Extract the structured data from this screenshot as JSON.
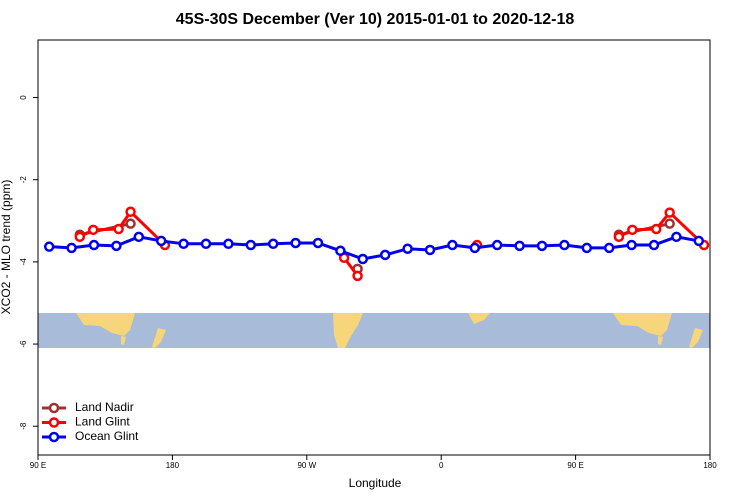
{
  "chart_data": {
    "type": "line",
    "title": "45S-30S December (Ver 10)   2015-01-01 to 2020-12-18",
    "xlabel": "Longitude",
    "ylabel": "XCO2 - MLO trend (ppm)",
    "xlim": [
      90,
      540
    ],
    "xticks": [
      {
        "value": 90,
        "label": "90 E"
      },
      {
        "value": 180,
        "label": "180"
      },
      {
        "value": 270,
        "label": "90 W"
      },
      {
        "value": 360,
        "label": "0"
      },
      {
        "value": 450,
        "label": "90 E"
      },
      {
        "value": 540,
        "label": "180"
      }
    ],
    "ylim": [
      -8.7,
      1.4
    ],
    "yticks": [
      0,
      -2,
      -4,
      -6,
      -8
    ],
    "legend": "bottom-left",
    "series": [
      {
        "name": "Land Nadir",
        "color": "#a03030",
        "x": [
          118,
          152,
          null,
          304,
          null,
          479,
          513
        ],
        "values": [
          -3.34,
          -3.07,
          null,
          -4.17,
          null,
          -3.34,
          -3.07
        ]
      },
      {
        "name": "Land Glint",
        "color": "#ff0000",
        "x": [
          118,
          127,
          144,
          152,
          175,
          null,
          295,
          304,
          null,
          384,
          null,
          479,
          488,
          504,
          513,
          536
        ],
        "values": [
          -3.39,
          -3.22,
          -3.2,
          -2.78,
          -3.59,
          null,
          -3.9,
          -4.34,
          null,
          -3.59,
          null,
          -3.39,
          -3.22,
          -3.2,
          -2.8,
          -3.59
        ]
      },
      {
        "name": "Ocean Glint",
        "color": "#0000ee",
        "x": [
          97.5,
          112.5,
          127.5,
          142.5,
          157.5,
          172.5,
          187.5,
          202.5,
          217.5,
          232.5,
          247.5,
          262.5,
          277.5,
          292.5,
          307.5,
          322.5,
          337.5,
          352.5,
          367.5,
          382.5,
          397.5,
          412.5,
          427.5,
          442.5,
          457.5,
          472.5,
          487.5,
          502.5,
          517.5,
          532.5
        ],
        "values": [
          -3.63,
          -3.66,
          -3.59,
          -3.61,
          -3.39,
          -3.49,
          -3.56,
          -3.56,
          -3.56,
          -3.59,
          -3.56,
          -3.54,
          -3.54,
          -3.73,
          -3.93,
          -3.83,
          -3.68,
          -3.71,
          -3.59,
          -3.66,
          -3.59,
          -3.61,
          -3.61,
          -3.59,
          -3.66,
          -3.66,
          -3.59,
          -3.59,
          -3.39,
          -3.49
        ]
      }
    ]
  }
}
